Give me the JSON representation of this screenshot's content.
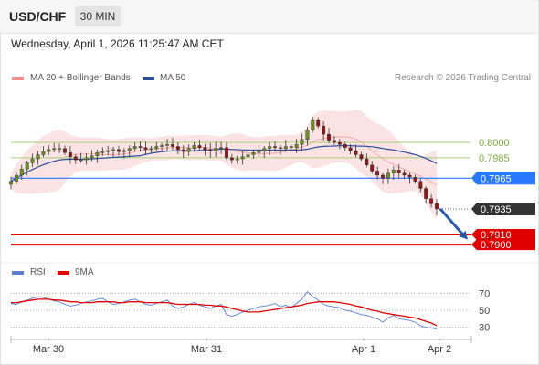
{
  "header": {
    "symbol": "USD/CHF",
    "timeframe": "30 MIN"
  },
  "datetime": "Wednesday, April 1, 2026 11:25:47 AM CET",
  "legend": {
    "bollinger": {
      "label": "MA 20 + Bollinger Bands",
      "color": "#f28b8b"
    },
    "ma50": {
      "label": "MA 50",
      "color": "#2b4e9e"
    },
    "rsi": {
      "label": "RSI",
      "color": "#5b7fd6"
    },
    "rsi_ma": {
      "label": "9MA",
      "color": "#e00000"
    }
  },
  "copyright": "Research © 2026 Trading Central",
  "chart_data": [
    {
      "type": "candlestick",
      "ylim": [
        0.7885,
        0.805
      ],
      "x_labels": [
        "Mar 30",
        "Mar 31",
        "Apr 1",
        "Apr 2"
      ],
      "last_price": {
        "value": 0.7935,
        "label": "0.7935",
        "color": "#333333"
      },
      "levels": [
        {
          "value": 0.8,
          "label": "0.8000",
          "kind": "resistance",
          "color": "#a6cf7a"
        },
        {
          "value": 0.7985,
          "label": "0.7985",
          "kind": "resistance",
          "color": "#a6cf7a"
        },
        {
          "value": 0.7965,
          "label": "0.7965",
          "kind": "pivot",
          "color": "#2979ff"
        },
        {
          "value": 0.791,
          "label": "0.7910",
          "kind": "support",
          "color": "#e00000"
        },
        {
          "value": 0.79,
          "label": "0.7900",
          "kind": "support",
          "color": "#e00000"
        }
      ],
      "projection": {
        "from": 0.7935,
        "to": 0.7905,
        "color": "#2b5aa8"
      },
      "close_path": [
        0.7962,
        0.7968,
        0.7974,
        0.798,
        0.7984,
        0.7988,
        0.7991,
        0.7993,
        0.7994,
        0.7994,
        0.799,
        0.7986,
        0.7983,
        0.7983,
        0.7985,
        0.7987,
        0.799,
        0.7991,
        0.7992,
        0.7993,
        0.7991,
        0.7992,
        0.7994,
        0.7996,
        0.7995,
        0.7993,
        0.7994,
        0.7996,
        0.7997,
        0.7998,
        0.7996,
        0.7993,
        0.7991,
        0.7994,
        0.7997,
        0.7995,
        0.7993,
        0.7992,
        0.7994,
        0.7995,
        0.7985,
        0.7983,
        0.7984,
        0.7986,
        0.7988,
        0.799,
        0.7992,
        0.7994,
        0.7996,
        0.7995,
        0.7994,
        0.7996,
        0.7995,
        0.7998,
        0.8003,
        0.8012,
        0.8022,
        0.8016,
        0.8008,
        0.8002,
        0.8,
        0.7998,
        0.7995,
        0.7992,
        0.7988,
        0.7984,
        0.7978,
        0.7972,
        0.7968,
        0.7965,
        0.797,
        0.7973,
        0.797,
        0.7968,
        0.7966,
        0.7962,
        0.7955,
        0.7945,
        0.794,
        0.7935
      ]
    },
    {
      "type": "line",
      "indicator": "RSI",
      "ylim": [
        20,
        80
      ],
      "y_ticks": [
        70,
        50,
        30
      ],
      "series": [
        {
          "name": "RSI",
          "color": "#5b7fd6",
          "values": [
            58,
            57,
            60,
            62,
            64,
            66,
            65,
            63,
            61,
            60,
            57,
            55,
            56,
            58,
            60,
            61,
            63,
            64,
            60,
            57,
            58,
            60,
            62,
            63,
            60,
            57,
            56,
            58,
            60,
            62,
            55,
            52,
            54,
            57,
            59,
            56,
            54,
            52,
            55,
            57,
            45,
            43,
            45,
            48,
            50,
            52,
            54,
            55,
            56,
            58,
            54,
            56,
            53,
            58,
            63,
            72,
            66,
            62,
            57,
            55,
            54,
            53,
            50,
            49,
            47,
            45,
            44,
            42,
            40,
            36,
            41,
            44,
            40,
            39,
            38,
            36,
            32,
            30,
            29,
            28
          ]
        },
        {
          "name": "9MA",
          "color": "#e00000",
          "values": [
            59,
            59,
            60,
            61,
            62,
            63,
            63,
            63,
            62,
            62,
            61,
            60,
            60,
            59,
            59,
            59,
            60,
            60,
            60,
            60,
            59,
            59,
            60,
            60,
            60,
            59,
            59,
            59,
            59,
            59,
            58,
            57,
            57,
            57,
            57,
            57,
            56,
            56,
            55,
            55,
            54,
            52,
            51,
            49,
            48,
            48,
            48,
            49,
            50,
            51,
            52,
            53,
            54,
            55,
            56,
            58,
            59,
            60,
            60,
            60,
            60,
            59,
            58,
            57,
            55,
            54,
            52,
            50,
            49,
            47,
            46,
            45,
            44,
            43,
            42,
            41,
            39,
            37,
            35,
            32
          ]
        }
      ],
      "ticks": {
        "rsi_70": "70",
        "rsi_50": "50",
        "rsi_30": "30"
      }
    }
  ]
}
